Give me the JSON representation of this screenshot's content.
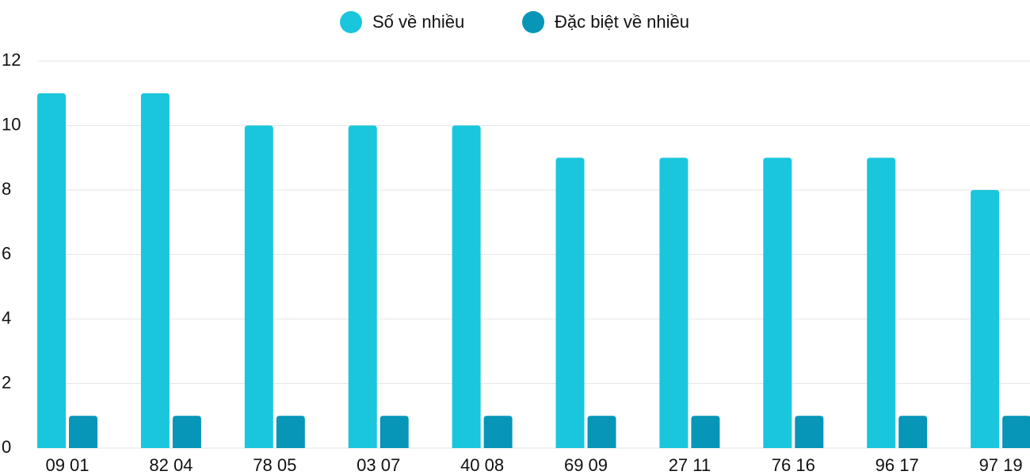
{
  "chart_data": {
    "type": "bar",
    "categories": [
      "09 01",
      "82 04",
      "78 05",
      "03 07",
      "40 08",
      "69 09",
      "27 11",
      "76 16",
      "96 17",
      "97 19"
    ],
    "series": [
      {
        "name": "Số về nhiều",
        "color": "#1ac6dc",
        "values": [
          11,
          11,
          10,
          10,
          10,
          9,
          9,
          9,
          9,
          8
        ]
      },
      {
        "name": "Đặc biệt về nhiều",
        "color": "#0795b8",
        "values": [
          1,
          1,
          1,
          1,
          1,
          1,
          1,
          1,
          1,
          1
        ]
      }
    ],
    "ylim": [
      0,
      12
    ],
    "yticks": [
      0,
      2,
      4,
      6,
      8,
      10,
      12
    ],
    "grid": true
  }
}
